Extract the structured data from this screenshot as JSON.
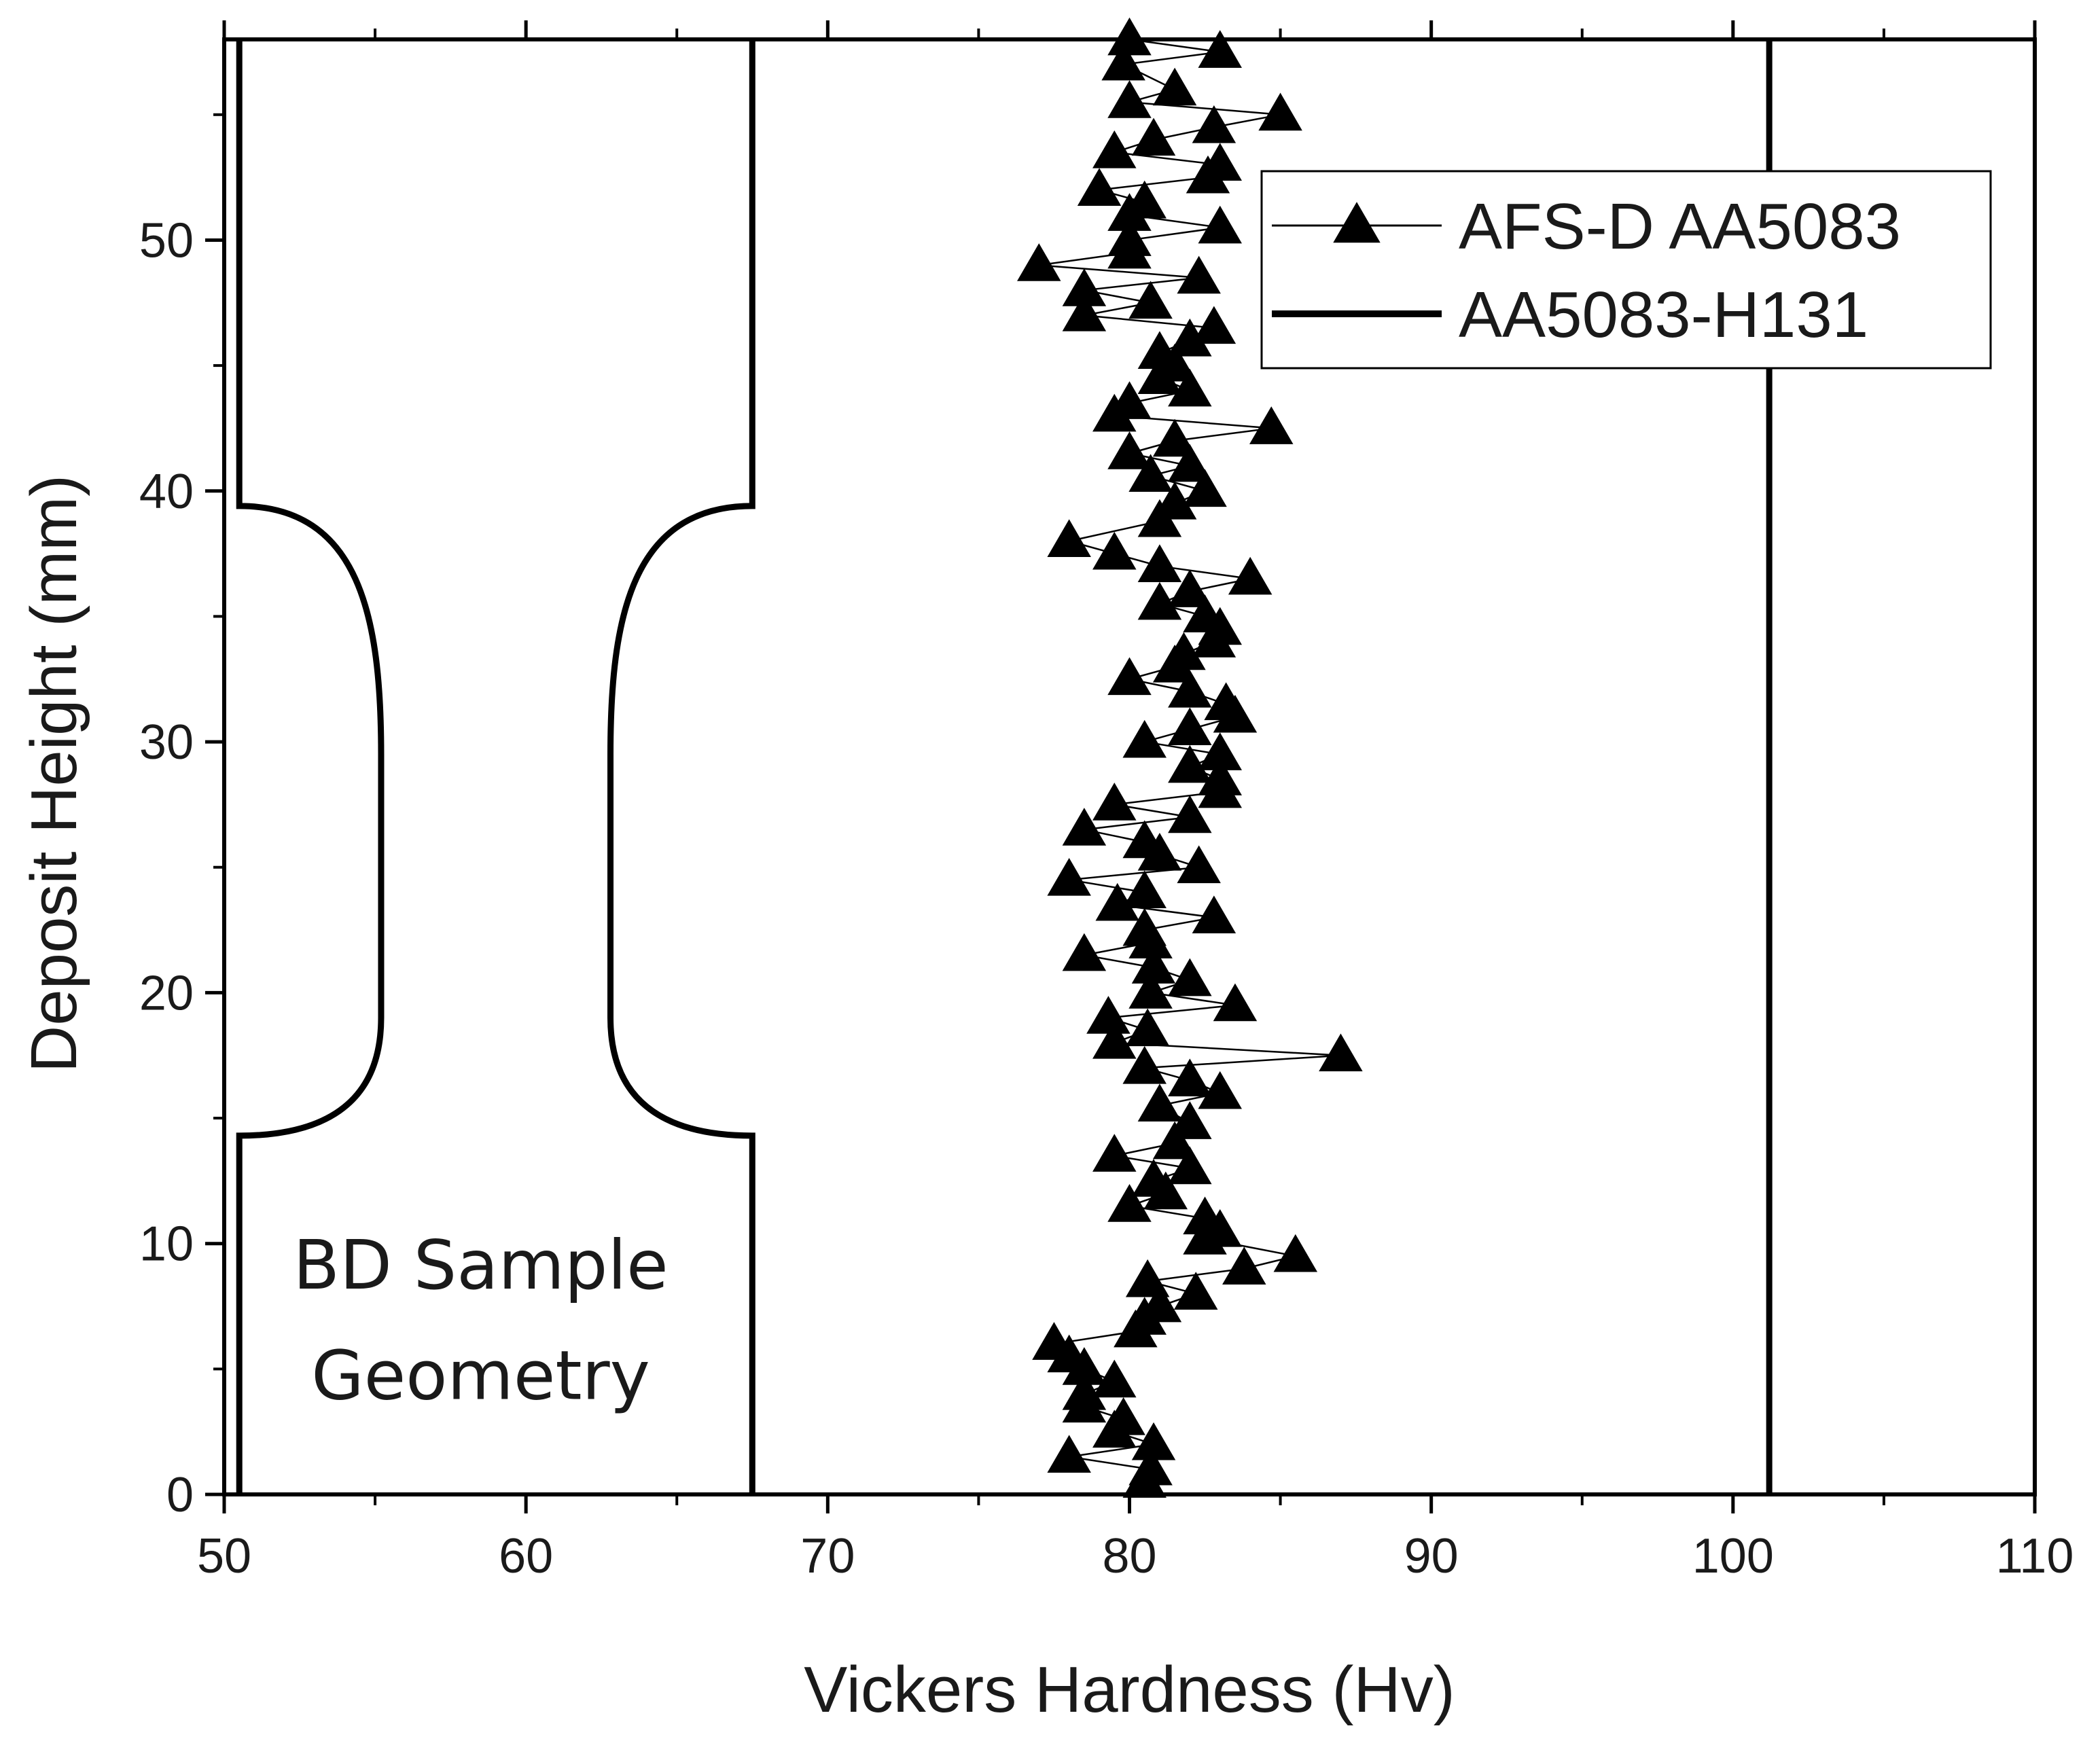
{
  "chart_data": {
    "type": "scatter",
    "title": "",
    "xlabel": "Vickers Hardness (Hv)",
    "ylabel": "Deposit Height (mm)",
    "xlim": [
      50,
      110
    ],
    "ylim": [
      0,
      58
    ],
    "x_ticks": [
      "50",
      "60",
      "70",
      "80",
      "90",
      "100",
      "110"
    ],
    "y_ticks": [
      "0",
      "10",
      "20",
      "30",
      "40",
      "50"
    ],
    "grid": false,
    "legend_position": "top-right",
    "annotation": [
      "BD Sample",
      "Geometry"
    ],
    "series": [
      {
        "name": "AFS-D AA5083",
        "marker": "triangle",
        "line": "thin",
        "color": "#000000",
        "points": [
          [
            80.5,
            0.5
          ],
          [
            80.7,
            1.0
          ],
          [
            78.0,
            1.5
          ],
          [
            80.8,
            2.0
          ],
          [
            79.5,
            2.5
          ],
          [
            79.8,
            3.0
          ],
          [
            78.5,
            3.5
          ],
          [
            78.5,
            4.0
          ],
          [
            79.5,
            4.5
          ],
          [
            78.5,
            5.0
          ],
          [
            78.0,
            5.5
          ],
          [
            77.5,
            6.0
          ],
          [
            80.2,
            6.5
          ],
          [
            80.5,
            7.0
          ],
          [
            81.0,
            7.5
          ],
          [
            82.2,
            8.0
          ],
          [
            80.6,
            8.5
          ],
          [
            83.8,
            9.0
          ],
          [
            85.5,
            9.5
          ],
          [
            82.5,
            10.2
          ],
          [
            83.0,
            10.5
          ],
          [
            82.5,
            11.0
          ],
          [
            80.0,
            11.5
          ],
          [
            81.2,
            12.0
          ],
          [
            80.8,
            12.5
          ],
          [
            82.0,
            13.0
          ],
          [
            79.5,
            13.5
          ],
          [
            81.5,
            14.0
          ],
          [
            82.0,
            14.8
          ],
          [
            81.0,
            15.5
          ],
          [
            83.0,
            16.0
          ],
          [
            82.0,
            16.5
          ],
          [
            80.5,
            17.0
          ],
          [
            87.0,
            17.5
          ],
          [
            79.5,
            18.0
          ],
          [
            80.6,
            18.5
          ],
          [
            79.3,
            19.0
          ],
          [
            83.5,
            19.5
          ],
          [
            80.7,
            20.0
          ],
          [
            82.0,
            20.5
          ],
          [
            80.8,
            21.0
          ],
          [
            78.5,
            21.5
          ],
          [
            80.7,
            22.0
          ],
          [
            80.5,
            22.5
          ],
          [
            82.8,
            23.0
          ],
          [
            79.6,
            23.5
          ],
          [
            80.5,
            24.0
          ],
          [
            78.0,
            24.5
          ],
          [
            82.3,
            25.0
          ],
          [
            81.0,
            25.5
          ],
          [
            80.5,
            26.0
          ],
          [
            78.5,
            26.5
          ],
          [
            82.0,
            27.0
          ],
          [
            79.5,
            27.5
          ],
          [
            83.0,
            28.0
          ],
          [
            83.0,
            28.5
          ],
          [
            82.0,
            29.0
          ],
          [
            83.0,
            29.5
          ],
          [
            80.5,
            30.0
          ],
          [
            82.0,
            30.5
          ],
          [
            83.5,
            31.0
          ],
          [
            83.2,
            31.5
          ],
          [
            82.0,
            32.0
          ],
          [
            80.0,
            32.5
          ],
          [
            81.5,
            33.0
          ],
          [
            81.8,
            33.5
          ],
          [
            82.8,
            34.0
          ],
          [
            83.0,
            34.5
          ],
          [
            82.5,
            35.0
          ],
          [
            81.0,
            35.5
          ],
          [
            82.0,
            36.0
          ],
          [
            84.0,
            36.5
          ],
          [
            81.0,
            37.0
          ],
          [
            79.5,
            37.5
          ],
          [
            78.0,
            38.0
          ],
          [
            81.0,
            38.8
          ],
          [
            81.5,
            39.5
          ],
          [
            82.5,
            40.0
          ],
          [
            80.7,
            40.6
          ],
          [
            82.0,
            41.0
          ],
          [
            80.0,
            41.5
          ],
          [
            81.5,
            42.0
          ],
          [
            84.7,
            42.5
          ],
          [
            79.5,
            43.0
          ],
          [
            80.0,
            43.5
          ],
          [
            82.0,
            44.0
          ],
          [
            81.0,
            44.5
          ],
          [
            81.5,
            45.0
          ],
          [
            81.0,
            45.5
          ],
          [
            82.0,
            46.0
          ],
          [
            82.8,
            46.5
          ],
          [
            78.5,
            47.0
          ],
          [
            80.7,
            47.5
          ],
          [
            78.5,
            48.0
          ],
          [
            82.3,
            48.5
          ],
          [
            77.0,
            49.0
          ],
          [
            80.0,
            49.5
          ],
          [
            80.0,
            50.0
          ],
          [
            83.0,
            50.5
          ],
          [
            80.0,
            51.0
          ],
          [
            80.5,
            51.5
          ],
          [
            79.0,
            52.0
          ],
          [
            82.6,
            52.5
          ],
          [
            83.0,
            53.0
          ],
          [
            79.5,
            53.5
          ],
          [
            80.8,
            54.0
          ],
          [
            82.8,
            54.5
          ],
          [
            85.0,
            55.0
          ],
          [
            80.0,
            55.5
          ],
          [
            81.5,
            56.0
          ],
          [
            79.8,
            57.0
          ],
          [
            83.0,
            57.5
          ],
          [
            80.0,
            58.0
          ]
        ]
      },
      {
        "name": "AA5083-H131",
        "marker": "none",
        "line": "thick",
        "color": "#000000",
        "x_value": 101.2
      }
    ],
    "sample_geometry_outline": {
      "left_edge_x": 50.5,
      "right_edge_x": 67.5,
      "left_neck_x": 55.2,
      "right_neck_x": 62.8,
      "neck_start_y": 14.3,
      "neck_end_y": 39.4,
      "straight_from_y": 29.5,
      "straight_to_y": 19.0
    }
  }
}
